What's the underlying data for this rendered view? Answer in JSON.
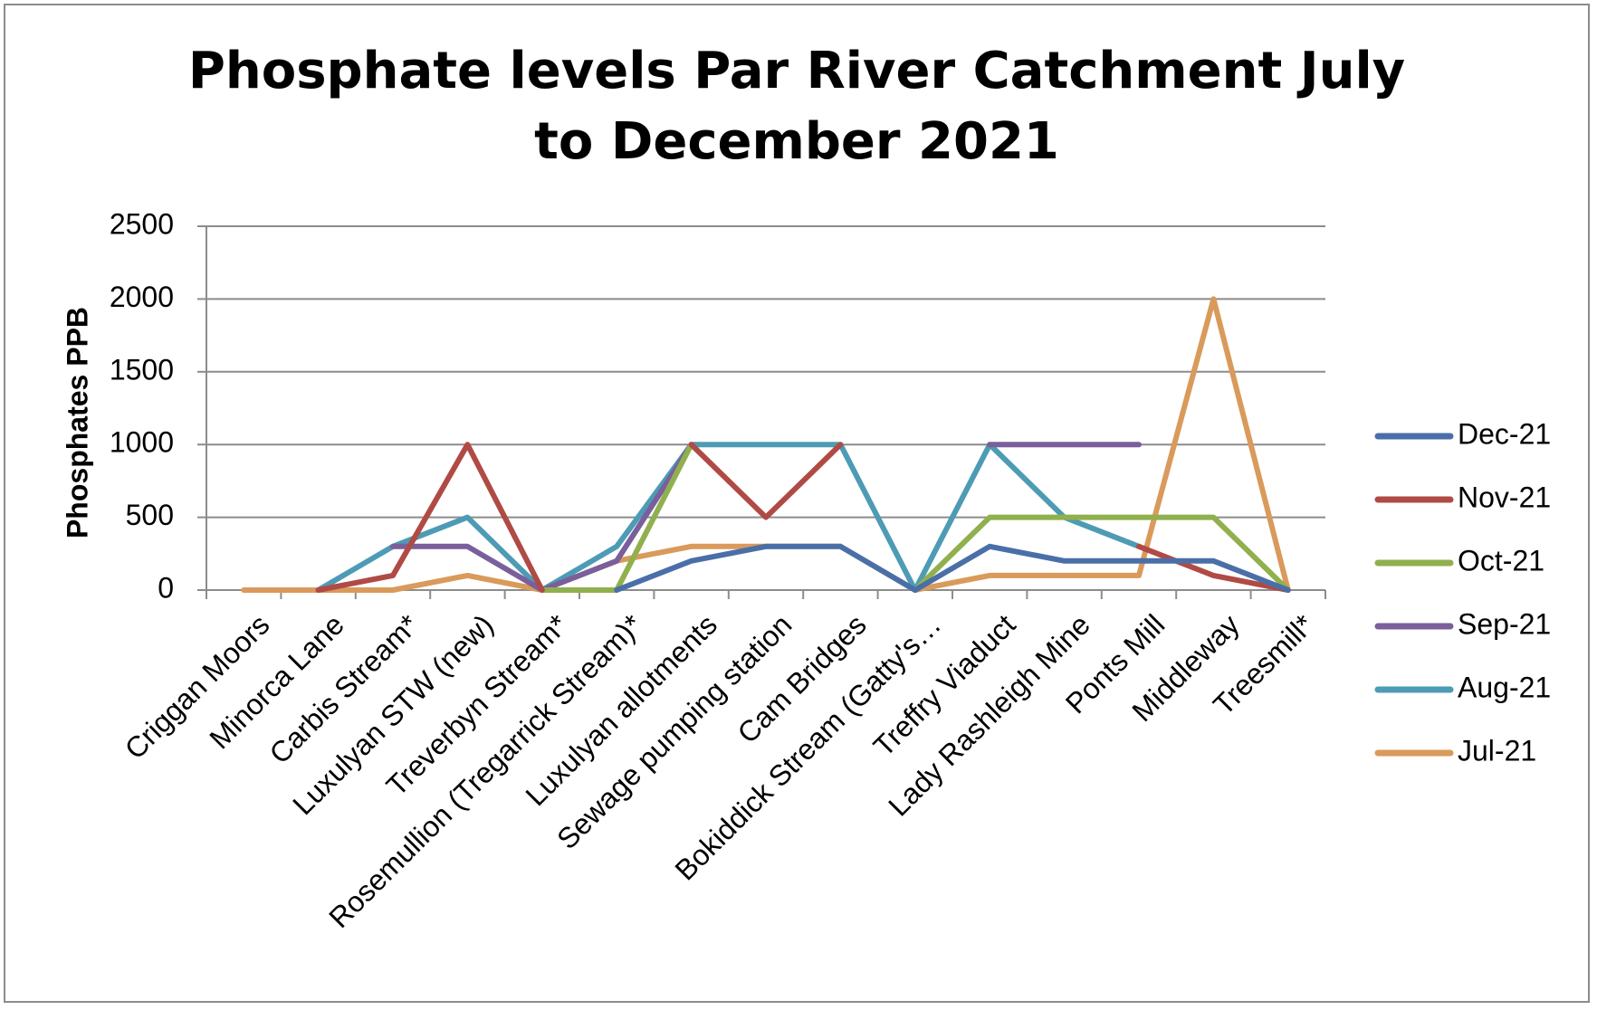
{
  "chart_data": {
    "type": "line",
    "title": "Phosphate levels Par River Catchment July to December 2021",
    "ylabel": "Phosphates PPB",
    "xlabel": "",
    "ylim": [
      0,
      2500
    ],
    "yticks": [
      0,
      500,
      1000,
      1500,
      2000,
      2500
    ],
    "grid": true,
    "legend_position": "right",
    "categories": [
      "Criggan Moors",
      "Minorca Lane",
      "Carbis Stream*",
      "Luxulyan STW (new)",
      "Treverbyn Stream*",
      "Rosemullion (Tregarrick Stream)*",
      "Luxulyan allotments",
      "Sewage pumping station",
      "Cam Bridges",
      "Bokiddick Stream (Gatty's…",
      "Treffry Viaduct",
      "Lady Rashleigh Mine",
      "Ponts Mill",
      "Middleway",
      "Treesmill*"
    ],
    "series": [
      {
        "name": "Dec-21",
        "color": "#4a6fa8",
        "values": [
          null,
          null,
          null,
          null,
          null,
          0,
          200,
          300,
          300,
          0,
          300,
          200,
          200,
          200,
          0
        ]
      },
      {
        "name": "Nov-21",
        "color": "#b04a45",
        "values": [
          null,
          0,
          100,
          1000,
          0,
          null,
          1000,
          500,
          1000,
          null,
          null,
          null,
          300,
          100,
          0
        ]
      },
      {
        "name": "Oct-21",
        "color": "#90b04e",
        "values": [
          null,
          null,
          null,
          null,
          0,
          0,
          1000,
          null,
          null,
          0,
          500,
          500,
          500,
          500,
          0
        ]
      },
      {
        "name": "Sep-21",
        "color": "#7a5f9c",
        "values": [
          null,
          null,
          300,
          300,
          0,
          200,
          1000,
          null,
          null,
          null,
          1000,
          1000,
          1000,
          null,
          null
        ]
      },
      {
        "name": "Aug-21",
        "color": "#4d9bb5",
        "values": [
          null,
          0,
          300,
          500,
          0,
          300,
          1000,
          1000,
          1000,
          0,
          1000,
          500,
          300,
          null,
          null
        ]
      },
      {
        "name": "Jul-21",
        "color": "#d99a5b",
        "values": [
          0,
          0,
          0,
          100,
          0,
          200,
          300,
          300,
          300,
          0,
          100,
          100,
          100,
          2000,
          0
        ]
      }
    ]
  }
}
